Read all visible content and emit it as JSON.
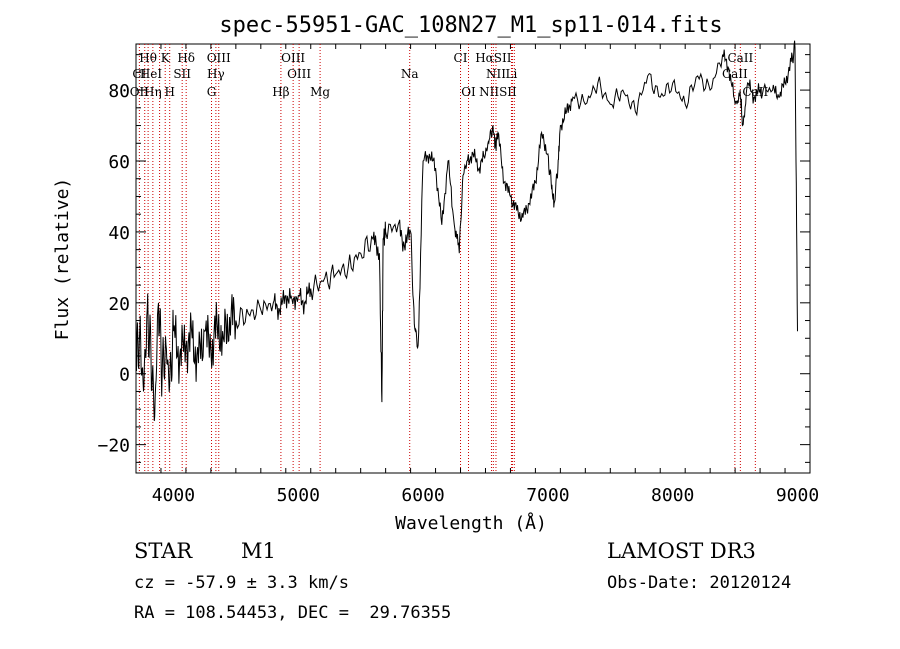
{
  "chart_data": {
    "type": "line",
    "title": "spec-55951-GAC_108N27_M1_sp11-014.fits",
    "xlabel": "Wavelength (Å)",
    "ylabel": "Flux (relative)",
    "xlim": [
      3700,
      9100
    ],
    "ylim": [
      -28,
      93
    ],
    "xticks": [
      4000,
      5000,
      6000,
      7000,
      8000,
      9000
    ],
    "yticks": [
      -20,
      0,
      20,
      40,
      60,
      80
    ],
    "grid": false,
    "line_color": "#000000",
    "line_marker_color": "#cc0000",
    "spectrum": {
      "x": [
        3700,
        3730,
        3760,
        3790,
        3820,
        3850,
        3880,
        3910,
        3940,
        3970,
        4000,
        4050,
        4100,
        4150,
        4200,
        4250,
        4300,
        4350,
        4400,
        4450,
        4500,
        4600,
        4700,
        4800,
        4850,
        4900,
        4950,
        5000,
        5050,
        5100,
        5200,
        5300,
        5400,
        5500,
        5600,
        5650,
        5670,
        5680,
        5700,
        5800,
        5850,
        5900,
        5930,
        5960,
        6000,
        6050,
        6100,
        6150,
        6200,
        6250,
        6290,
        6320,
        6350,
        6400,
        6450,
        6500,
        6530,
        6560,
        6580,
        6600,
        6650,
        6700,
        6750,
        6800,
        6850,
        6900,
        6950,
        7000,
        7030,
        7050,
        7080,
        7100,
        7150,
        7200,
        7300,
        7400,
        7500,
        7600,
        7700,
        7800,
        7900,
        8000,
        8100,
        8200,
        8300,
        8400,
        8450,
        8500,
        8540,
        8560,
        8600,
        8650,
        8700,
        8800,
        8850,
        8900,
        8950,
        8980,
        9000
      ],
      "y": [
        2,
        12,
        -5,
        18,
        5,
        -12,
        20,
        0,
        8,
        -3,
        12,
        5,
        8,
        10,
        3,
        12,
        6,
        14,
        10,
        16,
        15,
        17,
        18,
        20,
        18,
        22,
        21,
        22,
        20,
        24,
        26,
        28,
        30,
        34,
        38,
        34,
        -8,
        38,
        40,
        42,
        36,
        40,
        14,
        8,
        60,
        62,
        58,
        42,
        60,
        42,
        34,
        56,
        60,
        62,
        58,
        62,
        66,
        70,
        64,
        68,
        54,
        50,
        46,
        44,
        48,
        54,
        68,
        62,
        52,
        48,
        58,
        70,
        74,
        78,
        76,
        82,
        76,
        80,
        74,
        84,
        78,
        82,
        76,
        84,
        80,
        90,
        86,
        76,
        80,
        70,
        82,
        78,
        80,
        80,
        78,
        82,
        88,
        92,
        12
      ],
      "note": ""
    },
    "lines": [
      {
        "label": "Hθ",
        "wavelength": 3797,
        "row": 0
      },
      {
        "label": "K",
        "wavelength": 3934,
        "row": 0
      },
      {
        "label": "Hδ",
        "wavelength": 4102,
        "row": 0
      },
      {
        "label": "OIII",
        "wavelength": 4363,
        "row": 0
      },
      {
        "label": "OIII",
        "wavelength": 4959,
        "row": 0
      },
      {
        "label": "CI",
        "wavelength": 6300,
        "row": 0
      },
      {
        "label": "HαSII",
        "wavelength": 6563,
        "row": 0
      },
      {
        "label": "CaII",
        "wavelength": 8542,
        "row": 0
      },
      {
        "label": "CI",
        "wavelength": 3727,
        "row": 1
      },
      {
        "label": "HeI",
        "wavelength": 3820,
        "row": 1
      },
      {
        "label": "SII",
        "wavelength": 4070,
        "row": 1
      },
      {
        "label": "Hγ",
        "wavelength": 4340,
        "row": 1
      },
      {
        "label": "OIII",
        "wavelength": 5007,
        "row": 1
      },
      {
        "label": "Na",
        "wavelength": 5893,
        "row": 1
      },
      {
        "label": "NII",
        "wavelength": 6584,
        "row": 1
      },
      {
        "label": "Li",
        "wavelength": 6708,
        "row": 1
      },
      {
        "label": "CaII",
        "wavelength": 8498,
        "row": 1
      },
      {
        "label": "OII",
        "wavelength": 3727,
        "row": 2
      },
      {
        "label": "Hη",
        "wavelength": 3835,
        "row": 2
      },
      {
        "label": "H",
        "wavelength": 3970,
        "row": 2
      },
      {
        "label": "G",
        "wavelength": 4305,
        "row": 2
      },
      {
        "label": "Hβ",
        "wavelength": 4861,
        "row": 2
      },
      {
        "label": "Mg",
        "wavelength": 5175,
        "row": 2
      },
      {
        "label": "OI",
        "wavelength": 6364,
        "row": 2
      },
      {
        "label": "NIISII",
        "wavelength": 6600,
        "row": 2
      },
      {
        "label": "CaII",
        "wavelength": 8662,
        "row": 2
      }
    ],
    "marker_wavelengths": [
      3727,
      3770,
      3797,
      3835,
      3889,
      3934,
      3970,
      4070,
      4102,
      4305,
      4340,
      4363,
      4861,
      4959,
      5007,
      5175,
      5893,
      6300,
      6364,
      6548,
      6563,
      6584,
      6708,
      6716,
      6731,
      8498,
      8542,
      8662
    ]
  },
  "footer": {
    "object_class": "STAR",
    "subclass": "M1",
    "survey": "LAMOST DR3",
    "cz": "cz = -57.9 ± 3.3 km/s",
    "obs_date": "Obs-Date: 20120124",
    "coords": "RA = 108.54453, DEC =  29.76355"
  }
}
